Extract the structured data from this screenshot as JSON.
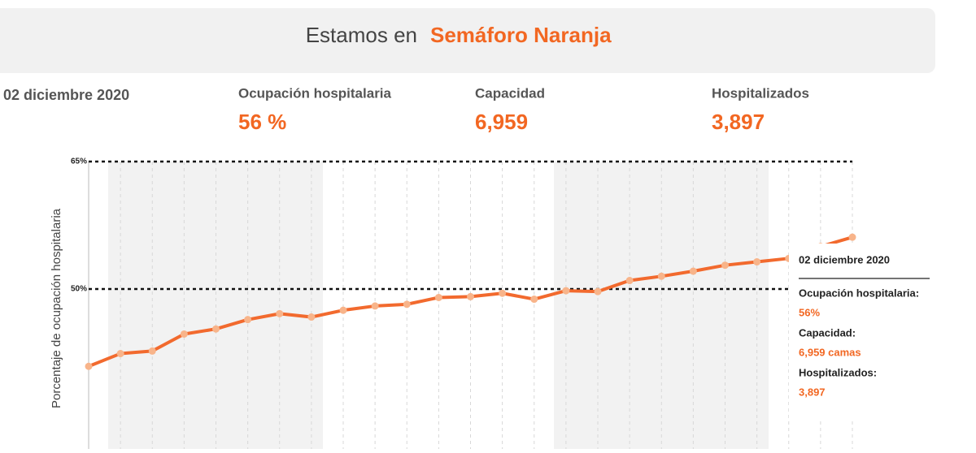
{
  "banner": {
    "prefix": "Estamos en",
    "status": "Semáforo Naranja"
  },
  "stats": {
    "date": "02 diciembre 2020",
    "items": [
      {
        "label": "Ocupación hospitalaria",
        "value": "56 %"
      },
      {
        "label": "Capacidad",
        "value": "6,959"
      },
      {
        "label": "Hospitalizados",
        "value": "3,897"
      }
    ]
  },
  "tooltip": {
    "date": "02 diciembre 2020",
    "rows": [
      {
        "label": "Ocupación hospitalaria:",
        "value": "56%"
      },
      {
        "label": "Capacidad:",
        "value": "6,959 camas"
      },
      {
        "label": "Hospitalizados:",
        "value": "3,897"
      }
    ]
  },
  "chart_data": {
    "type": "line",
    "y_label": "Porcentaje de ocupación hospitalaria",
    "categories": [
      null,
      null,
      null,
      null,
      null,
      null,
      null,
      null,
      null,
      null,
      null,
      null,
      null,
      null,
      null,
      null,
      null,
      null,
      null,
      null,
      null,
      null,
      null,
      null,
      null
    ],
    "values": [
      40.9,
      42.4,
      42.7,
      44.7,
      45.3,
      46.4,
      47.1,
      46.7,
      47.5,
      48.0,
      48.2,
      49.0,
      49.1,
      49.5,
      48.8,
      49.8,
      49.7,
      51.0,
      51.5,
      52.1,
      52.8,
      53.2,
      53.6,
      55.0,
      56.1
    ],
    "color": "#f26a2e",
    "marker_color": "#f8b48a",
    "ylim": [
      31,
      65
    ],
    "yticks": [
      {
        "value": 50,
        "label": "50%"
      },
      {
        "value": 65,
        "label": "65%"
      }
    ],
    "grid": true
  }
}
